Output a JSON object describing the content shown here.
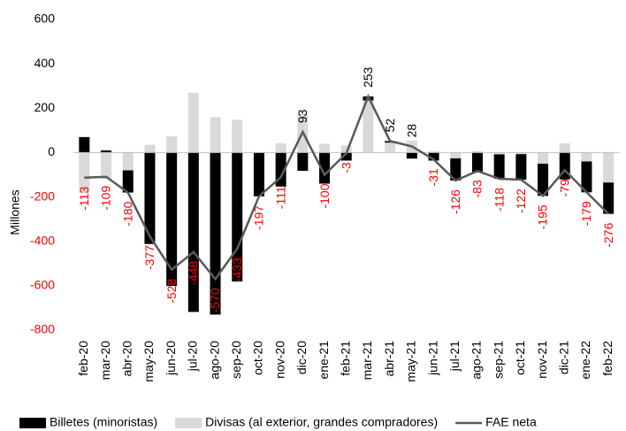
{
  "chart_data": {
    "type": "bar",
    "y_label": "Millones",
    "categories": [
      "feb-20",
      "mar-20",
      "abr-20",
      "may-20",
      "jun-20",
      "jul-20",
      "ago-20",
      "sep-20",
      "oct-20",
      "nov-20",
      "dic-20",
      "ene-21",
      "feb-21",
      "mar-21",
      "abr-21",
      "may-21",
      "jun-21",
      "jul-21",
      "ago-21",
      "sep-21",
      "oct-21",
      "nov-21",
      "dic-21",
      "ene-22",
      "feb-22"
    ],
    "series": [
      {
        "name": "Billetes (minoristas)",
        "color": "#000000",
        "stack": true,
        "values": [
          70,
          10,
          -100,
          -412,
          -601,
          -718,
          -730,
          -581,
          -197,
          -153,
          -82,
          -140,
          -36,
          18,
          7,
          -27,
          -36,
          -100,
          -90,
          -110,
          -115,
          -145,
          -121,
          -139,
          -141
        ]
      },
      {
        "name": "Divisas (al exterior, grandes compradores)",
        "color": "#d9d9d9",
        "stack": true,
        "values": [
          -183,
          -119,
          -80,
          35,
          73,
          270,
          160,
          148,
          0,
          42,
          175,
          40,
          33,
          235,
          45,
          55,
          5,
          -26,
          7,
          -8,
          -7,
          -50,
          42,
          -40,
          -135
        ]
      },
      {
        "name": "FAE neta",
        "color": "#595959",
        "kind": "line",
        "values": [
          -113,
          -109,
          -180,
          -377,
          -528,
          -448,
          -570,
          -433,
          -197,
          -111,
          93,
          -100,
          -3,
          253,
          52,
          28,
          -31,
          -126,
          -83,
          -118,
          -122,
          -195,
          -79,
          -179,
          -276
        ]
      }
    ],
    "ylim": [
      -800,
      600
    ],
    "yticks": [
      -800,
      -600,
      -400,
      -200,
      0,
      200,
      400,
      600
    ],
    "negative_color": "#ff0000"
  }
}
